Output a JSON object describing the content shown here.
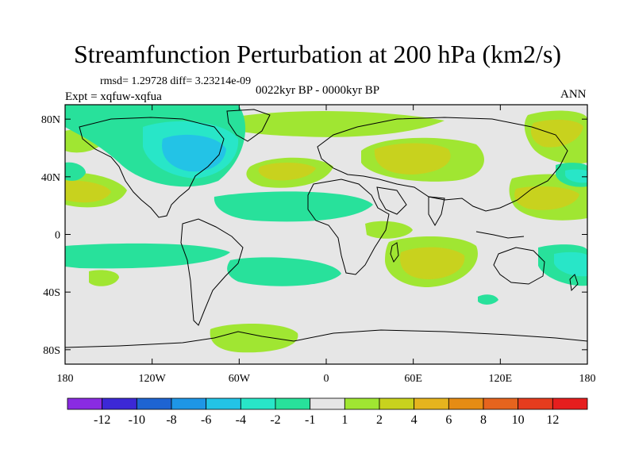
{
  "title": "Streamfunction Perturbation at 200 hPa (km2/s)",
  "stats": "rmsd= 1.29728 diff= 3.23214e-09",
  "experiment": "Expt = xqfuw-xqfua",
  "period": "0022kyr BP - 0000kyr BP",
  "season": "ANN",
  "map": {
    "projection": "cylindrical equidistant",
    "lon_range": [
      -180,
      180
    ],
    "lat_range": [
      -90,
      90
    ],
    "lat_ticks": [
      {
        "value": 80,
        "label": "80N"
      },
      {
        "value": 40,
        "label": "40N"
      },
      {
        "value": 0,
        "label": "0"
      },
      {
        "value": -40,
        "label": "40S"
      },
      {
        "value": -80,
        "label": "80S"
      }
    ],
    "lon_ticks": [
      {
        "value": -180,
        "label": "180"
      },
      {
        "value": -120,
        "label": "120W"
      },
      {
        "value": -60,
        "label": "60W"
      },
      {
        "value": 0,
        "label": "0"
      },
      {
        "value": 60,
        "label": "60E"
      },
      {
        "value": 120,
        "label": "120E"
      },
      {
        "value": 180,
        "label": "180"
      }
    ]
  },
  "colorbar": {
    "levels": [
      "-12",
      "-10",
      "-8",
      "-6",
      "-4",
      "-2",
      "-1",
      "1",
      "2",
      "4",
      "6",
      "8",
      "10",
      "12"
    ],
    "colors": [
      "#8a2be2",
      "#3c28d6",
      "#1e64d2",
      "#1e96e6",
      "#23c3e6",
      "#28e6c8",
      "#28e19b",
      "#e6e6e6",
      "#a0e632",
      "#c8d21e",
      "#e6b41e",
      "#e68c14",
      "#e6641e",
      "#e63c1e",
      "#e61e1e"
    ]
  },
  "colors": {
    "background": "#ffffff",
    "neutral": "#e6e6e6",
    "coast": "#000000"
  }
}
